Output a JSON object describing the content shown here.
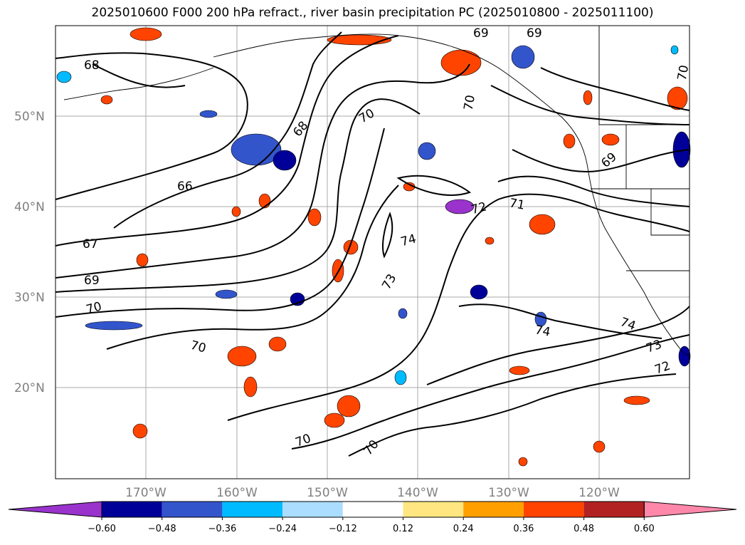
{
  "title": "2025010600 F000 200 hPa refract., river basin precipitation PC (2025010800 - 2025011100)",
  "lat_labels": [
    "50°N",
    "40°N",
    "30°N",
    "20°N"
  ],
  "lon_labels": [
    "170°W",
    "160°W",
    "150°W",
    "140°W",
    "130°W",
    "120°W"
  ],
  "colorbar": {
    "ticks": [
      "−0.60",
      "−0.48",
      "−0.36",
      "−0.24",
      "−0.12",
      "0.12",
      "0.24",
      "0.36",
      "0.48",
      "0.60"
    ],
    "colors": [
      "#9933cc",
      "#000099",
      "#3355cc",
      "#00bbff",
      "#aaddff",
      "#ffffff",
      "#ffe680",
      "#ffa000",
      "#ff4400",
      "#b22222",
      "#ff88aa"
    ]
  },
  "contour_labels": [
    "68",
    "69",
    "69",
    "70",
    "70",
    "68",
    "70",
    "69",
    "66",
    "72",
    "71",
    "67",
    "74",
    "69",
    "73",
    "70",
    "74",
    "74",
    "73",
    "70",
    "72",
    "70",
    "70"
  ],
  "colors": {
    "contour": "#000000",
    "grid": "#aaaaaa",
    "coast": "#000000"
  }
}
